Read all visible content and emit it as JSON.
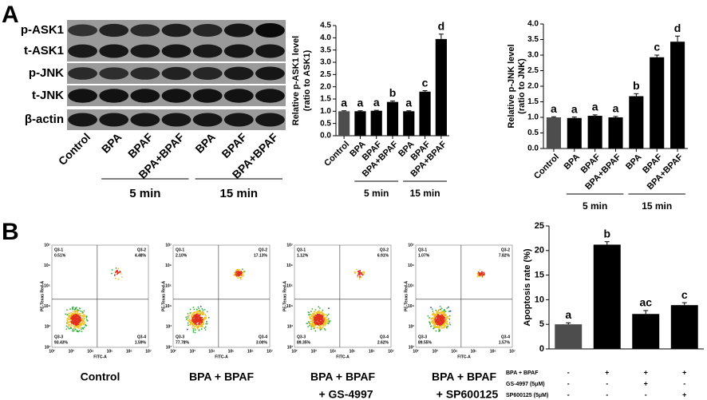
{
  "panel_labels": [
    "A",
    "B"
  ],
  "blot": {
    "rows": [
      "p-ASK1",
      "t-ASK1",
      "p-JNK",
      "t-JNK",
      "β-actin"
    ],
    "lanes": [
      "Control",
      "BPA",
      "BPAF",
      "BPA+BPAF",
      "BPA",
      "BPAF",
      "BPA+BPAF"
    ],
    "groups": [
      "5 min",
      "15 min"
    ]
  },
  "flow": {
    "x_label": "FITC-A",
    "y_label": "PE-Texas Red-A",
    "ticks": [
      "10²",
      "10³",
      "10⁴",
      "10⁵",
      "10⁶",
      "10⁷"
    ],
    "plots": [
      {
        "caption": [
          "Control"
        ],
        "quadrants": [
          {
            "name": "Q3-1",
            "value": "0.51%"
          },
          {
            "name": "Q3-2",
            "value": "4.48%"
          },
          {
            "name": "Q3-3",
            "value": "93.43%"
          },
          {
            "name": "Q3-4",
            "value": "1.59%"
          }
        ]
      },
      {
        "caption": [
          "BPA + BPAF"
        ],
        "quadrants": [
          {
            "name": "Q3-1",
            "value": "2.10%"
          },
          {
            "name": "Q3-2",
            "value": "17.13%"
          },
          {
            "name": "Q3-3",
            "value": "77.78%"
          },
          {
            "name": "Q3-4",
            "value": "3.00%"
          }
        ]
      },
      {
        "caption": [
          "BPA + BPAF",
          "+ GS-4997"
        ],
        "quadrants": [
          {
            "name": "Q3-1",
            "value": "1.12%"
          },
          {
            "name": "Q3-2",
            "value": "6.91%"
          },
          {
            "name": "Q3-3",
            "value": "89.35%"
          },
          {
            "name": "Q3-4",
            "value": "2.62%"
          }
        ]
      },
      {
        "caption": [
          "BPA + BPAF",
          "+ SP600125"
        ],
        "quadrants": [
          {
            "name": "Q3-1",
            "value": "1.07%"
          },
          {
            "name": "Q3-2",
            "value": "7.82%"
          },
          {
            "name": "Q3-3",
            "value": "89.55%"
          },
          {
            "name": "Q3-4",
            "value": "1.57%"
          }
        ]
      }
    ]
  },
  "chart_data": [
    {
      "type": "bar",
      "ylabel": [
        "Relative p-ASK1 level",
        "(ratio to ASK1)"
      ],
      "categories": [
        "Control",
        "BPA",
        "BPAF",
        "BPA+BPAF",
        "BPA",
        "BPAF",
        "BPA+BPAF"
      ],
      "groups": [
        "5 min",
        "15 min"
      ],
      "values": [
        1.0,
        1.0,
        1.02,
        1.38,
        1.0,
        1.8,
        3.95
      ],
      "errors": [
        0.02,
        0.02,
        0.02,
        0.04,
        0.02,
        0.04,
        0.2
      ],
      "annotations": [
        "a",
        "a",
        "a",
        "b",
        "a",
        "c",
        "d"
      ],
      "colors": [
        "#4d4d4d",
        "#000000",
        "#000000",
        "#000000",
        "#000000",
        "#000000",
        "#000000"
      ],
      "ylim": [
        0,
        4.5
      ],
      "yticks": [
        {
          "value": 0,
          "label": "0.0"
        },
        {
          "value": 0.5,
          "label": "0.5"
        },
        {
          "value": 1,
          "label": "1.0"
        },
        {
          "value": 1.5,
          "label": "1.5"
        },
        {
          "value": 2,
          "label": "2.0"
        },
        {
          "value": 2.5,
          "label": "2.5"
        },
        {
          "value": 3,
          "label": "3.0"
        },
        {
          "value": 3.5,
          "label": "3.5"
        },
        {
          "value": 4,
          "label": "4.0"
        },
        {
          "value": 4.5,
          "label": "4.5"
        }
      ]
    },
    {
      "type": "bar",
      "ylabel": [
        "Relative p-JNK level",
        "(ratio to JNK)"
      ],
      "categories": [
        "Control",
        "BPA",
        "BPAF",
        "BPA+BPAF",
        "BPA",
        "BPAF",
        "BPA+BPAF"
      ],
      "groups": [
        "5 min",
        "15 min"
      ],
      "values": [
        1.0,
        0.98,
        1.05,
        1.0,
        1.68,
        2.93,
        3.43
      ],
      "errors": [
        0.02,
        0.03,
        0.03,
        0.03,
        0.08,
        0.07,
        0.18
      ],
      "annotations": [
        "a",
        "a",
        "a",
        "a",
        "b",
        "c",
        "d"
      ],
      "colors": [
        "#4d4d4d",
        "#000000",
        "#000000",
        "#000000",
        "#000000",
        "#000000",
        "#000000"
      ],
      "ylim": [
        0,
        4.0
      ],
      "yticks": [
        {
          "value": 0,
          "label": "0.0"
        },
        {
          "value": 0.5,
          "label": "0.5"
        },
        {
          "value": 1,
          "label": "1.0"
        },
        {
          "value": 1.5,
          "label": "1.5"
        },
        {
          "value": 2,
          "label": "2.0"
        },
        {
          "value": 2.5,
          "label": "2.5"
        },
        {
          "value": 3,
          "label": "3.0"
        },
        {
          "value": 3.5,
          "label": "3.5"
        },
        {
          "value": 4,
          "label": "4.0"
        }
      ]
    },
    {
      "type": "bar",
      "ylabel": [
        "Apoptosis rate (%)"
      ],
      "values": [
        5.0,
        21.2,
        7.1,
        8.9
      ],
      "errors": [
        0.3,
        0.6,
        0.7,
        0.5
      ],
      "annotations": [
        "a",
        "b",
        "ac",
        "c"
      ],
      "colors": [
        "#4d4d4d",
        "#000000",
        "#000000",
        "#000000"
      ],
      "ylim": [
        0,
        25
      ],
      "yticks": [
        0,
        5,
        10,
        15,
        20,
        25
      ],
      "treatments": [
        {
          "name": "BPA + BPAF",
          "marks": [
            "-",
            "+",
            "+",
            "+"
          ]
        },
        {
          "name": "GS-4997 (5μM)",
          "marks": [
            "-",
            "-",
            "+",
            "-"
          ]
        },
        {
          "name": "SP600125 (5μM)",
          "marks": [
            "-",
            "-",
            "-",
            "+"
          ]
        }
      ]
    }
  ]
}
